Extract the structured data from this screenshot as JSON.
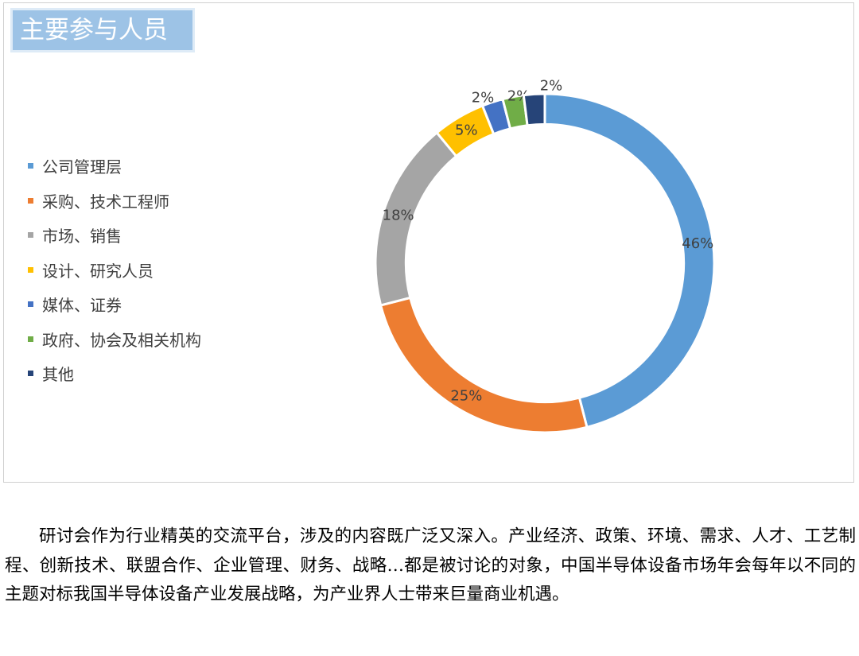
{
  "chart_data": {
    "type": "pie",
    "title": "主要参与人员",
    "legend_position": "left",
    "inner_radius_ratio": 0.82,
    "series": [
      {
        "categories": [
          "公司管理层",
          "采购、技术工程师",
          "市场、销售",
          "设计、研究人员",
          "媒体、证券",
          "政府、协会及相关机构",
          "其他"
        ],
        "values": [
          46,
          25,
          18,
          5,
          2,
          2,
          2
        ],
        "data_labels": [
          "46%",
          "25%",
          "18%",
          "5%",
          "2%",
          "2%",
          "2%"
        ],
        "colors": [
          "#5b9bd5",
          "#ed7d31",
          "#a5a5a5",
          "#ffc000",
          "#4472c4",
          "#70ad47",
          "#264478"
        ]
      }
    ]
  },
  "paragraph": "研讨会作为行业精英的交流平台，涉及的内容既广泛又深入。产业经济、政策、环境、需求、人才、工艺制程、创新技术、联盟合作、企业管理、财务、战略…都是被讨论的对象，中国半导体设备市场年会每年以不同的主题对标我国半导体设备产业发展战略，为产业界人士带来巨量商业机遇。"
}
